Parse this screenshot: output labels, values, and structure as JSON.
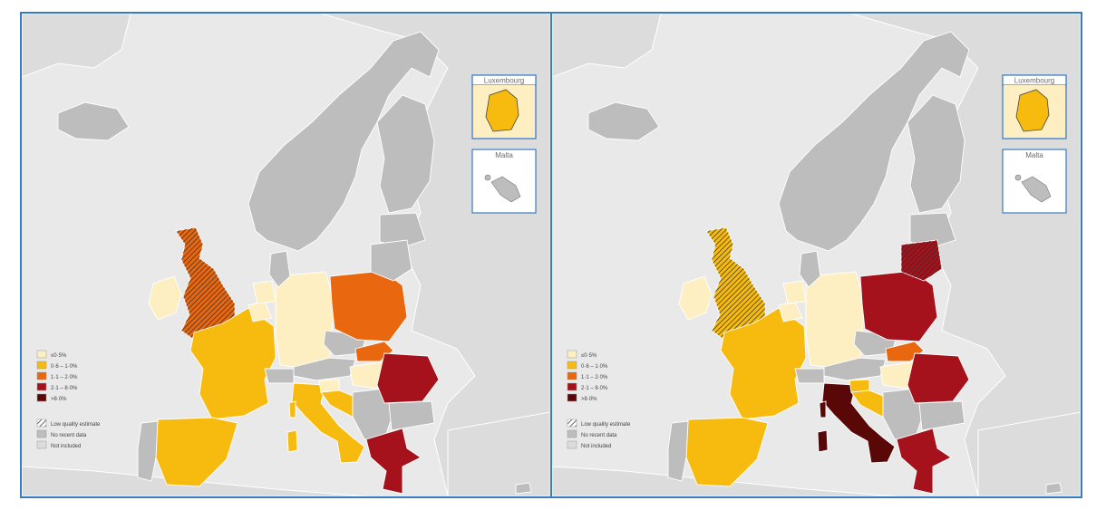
{
  "colors": {
    "sea": "#e9e9e9",
    "not_included": "#dcdcdc",
    "no_data": "#bdbdbd",
    "border": "#ffffff",
    "frame": "#3a7cc0",
    "c1": "#fdefc1",
    "c2": "#f6bb0e",
    "c3": "#e8670f",
    "c4": "#a5121c",
    "c5": "#5a0708"
  },
  "legend": {
    "items": [
      {
        "key": "c1",
        "label": "≤0·5%"
      },
      {
        "key": "c2",
        "label": "0·6 – 1·0%"
      },
      {
        "key": "c3",
        "label": "1·1 – 2·0%"
      },
      {
        "key": "c4",
        "label": "2·1 – 8·0%"
      },
      {
        "key": "c5",
        "label": ">8·0%"
      }
    ],
    "extra": [
      {
        "key": "hatch",
        "label": "Low quality estimate"
      },
      {
        "key": "no_data",
        "label": "No recent data"
      },
      {
        "key": "not_included",
        "label": "Not included"
      }
    ]
  },
  "insets": {
    "luxembourg": "Luxembourg",
    "malta": "Malta"
  },
  "maps": [
    {
      "name": "left",
      "lux_fill": "c2",
      "countries": {
        "ireland": "c1",
        "uk": "c3",
        "france": "c2",
        "spain": "c2",
        "portugal": "no_data",
        "italy": "c2",
        "sardinia": "c2",
        "corsica": "c2",
        "belgium": "c1",
        "netherlands": "c1",
        "germany": "c1",
        "switzerland": "no_data",
        "austria": "no_data",
        "czechia": "no_data",
        "poland": "c3",
        "slovakia": "c3",
        "hungary": "c1",
        "slovenia": "c1",
        "croatia": "c2",
        "balkans": "no_data",
        "romania": "c4",
        "bulgaria": "no_data",
        "greece": "c4",
        "denmark": "no_data",
        "scandinavia": "no_data",
        "finland": "no_data",
        "baltics": "no_data",
        "lithuania": "no_data",
        "iceland": "no_data",
        "cyprus": "no_data"
      },
      "hatched": [
        "uk"
      ]
    },
    {
      "name": "right",
      "lux_fill": "c2",
      "countries": {
        "ireland": "c1",
        "uk": "c2",
        "france": "c2",
        "spain": "c2",
        "portugal": "no_data",
        "italy": "c5",
        "sardinia": "c5",
        "corsica": "c5",
        "belgium": "c1",
        "netherlands": "c1",
        "germany": "c1",
        "switzerland": "no_data",
        "austria": "no_data",
        "czechia": "no_data",
        "poland": "c4",
        "slovakia": "c3",
        "hungary": "c1",
        "slovenia": "c2",
        "croatia": "c2",
        "balkans": "no_data",
        "romania": "c4",
        "bulgaria": "no_data",
        "greece": "c4",
        "denmark": "no_data",
        "scandinavia": "no_data",
        "finland": "no_data",
        "baltics": "no_data",
        "lithuania": "c4",
        "iceland": "no_data",
        "cyprus": "no_data"
      },
      "hatched": [
        "uk",
        "lithuania"
      ]
    }
  ]
}
